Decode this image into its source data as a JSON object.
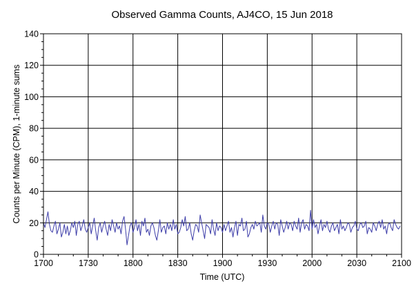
{
  "chart_data": {
    "type": "line",
    "title": "Observed Gamma Counts, AJ4CO, 15 Jun 2018",
    "xlabel": "Time (UTC)",
    "ylabel": "Counts per Minute (CPM), 1-minute sums",
    "x_ticks": [
      "1700",
      "1730",
      "1800",
      "1830",
      "1900",
      "1930",
      "2000",
      "2030",
      "2100"
    ],
    "y_ticks": [
      "0",
      "20",
      "40",
      "60",
      "80",
      "100",
      "120",
      "140"
    ],
    "xlim_minutes": [
      0,
      240
    ],
    "ylim": [
      0,
      140
    ],
    "grid": true,
    "series": [
      {
        "color": "#3c3ca8",
        "x_start": "1700",
        "x_step_minutes": 1,
        "values": [
          20,
          17,
          22,
          27,
          19,
          15,
          14,
          18,
          21,
          13,
          16,
          20,
          11,
          14,
          19,
          13,
          18,
          12,
          15,
          20,
          17,
          21,
          12,
          19,
          21,
          15,
          18,
          22,
          16,
          14,
          17,
          20,
          13,
          18,
          23,
          15,
          9,
          17,
          20,
          14,
          18,
          21,
          16,
          12,
          19,
          15,
          22,
          18,
          14,
          20,
          16,
          18,
          13,
          21,
          24,
          16,
          6,
          12,
          18,
          20,
          14,
          17,
          22,
          15,
          19,
          12,
          21,
          18,
          23,
          14,
          16,
          12,
          18,
          20,
          17,
          12,
          9,
          15,
          22,
          14,
          17,
          18,
          13,
          20,
          16,
          19,
          15,
          22,
          16,
          19,
          13,
          14,
          17,
          22,
          18,
          24,
          15,
          16,
          20,
          13,
          9,
          15,
          19,
          18,
          14,
          25,
          20,
          15,
          10,
          19,
          18,
          17,
          13,
          22,
          16,
          12,
          20,
          15,
          18,
          17,
          14,
          19,
          15,
          18,
          21,
          14,
          17,
          11,
          17,
          21,
          12,
          19,
          18,
          23,
          15,
          16,
          21,
          11,
          13,
          17,
          19,
          16,
          21,
          18,
          19,
          20,
          14,
          25,
          18,
          16,
          20,
          19,
          14,
          18,
          21,
          16,
          20,
          19,
          12,
          22,
          18,
          14,
          17,
          21,
          16,
          20,
          19,
          15,
          21,
          18,
          16,
          23,
          14,
          20,
          22,
          16,
          19,
          18,
          15,
          28,
          16,
          22,
          17,
          19,
          13,
          18,
          22,
          15,
          19,
          17,
          21,
          16,
          14,
          18,
          20,
          15,
          17,
          19,
          13,
          22,
          16,
          18,
          15,
          17,
          20,
          19,
          14,
          17,
          18,
          21,
          16,
          15,
          19,
          20,
          17,
          18,
          21,
          13,
          17,
          16,
          14,
          20,
          18,
          15,
          19,
          21,
          17,
          22,
          16,
          18,
          13,
          19,
          20,
          17,
          15,
          22,
          19,
          17,
          16,
          18
        ]
      }
    ]
  }
}
